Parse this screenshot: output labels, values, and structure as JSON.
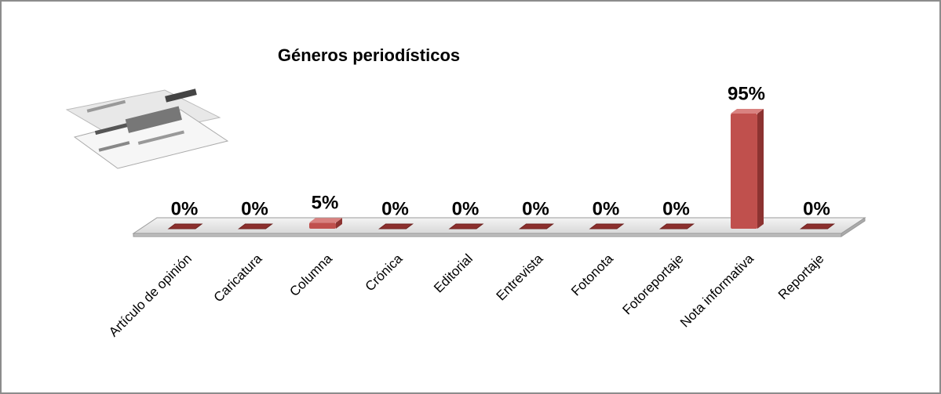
{
  "chart_data": {
    "type": "bar3d",
    "title": "Géneros periodísticos",
    "categories": [
      "Artículo de opinión",
      "Caricatura",
      "Columna",
      "Crónica",
      "Editorial",
      "Entrevista",
      "Fotonota",
      "Fotoreportaje",
      "Nota informativa",
      "Reportaje"
    ],
    "values": [
      0,
      0,
      5,
      0,
      0,
      0,
      0,
      0,
      95,
      0
    ],
    "value_labels": [
      "0%",
      "0%",
      "5%",
      "0%",
      "0%",
      "0%",
      "0%",
      "0%",
      "95%",
      "0%"
    ],
    "color": "#c0504d"
  }
}
